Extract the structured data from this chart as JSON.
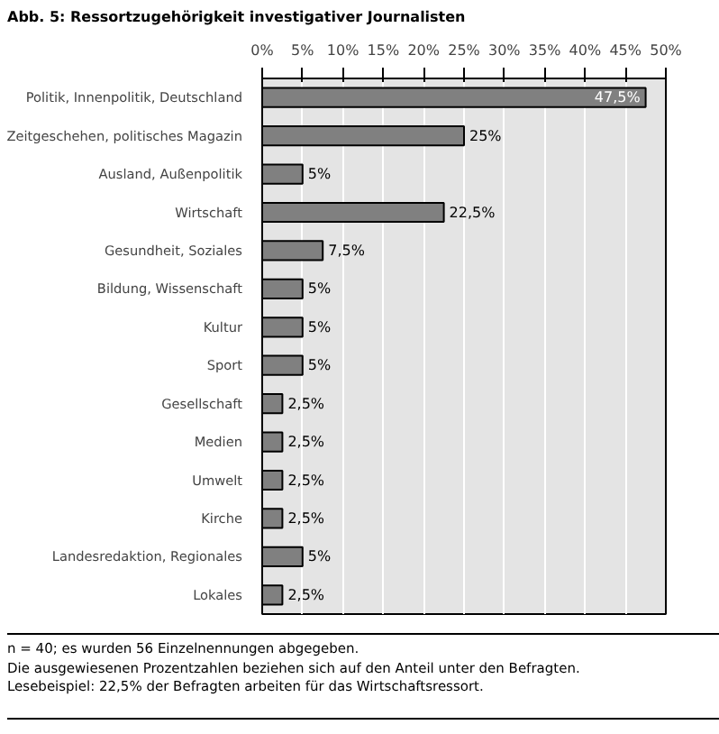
{
  "chart_data": {
    "type": "bar",
    "orientation": "horizontal",
    "title": "Abb. 5: Ressortzugehörigkeit investigativer Journalisten",
    "categories": [
      "Politik, Innenpolitik, Deutschland",
      "Zeitgeschehen, politisches Magazin",
      "Ausland, Außenpolitik",
      "Wirtschaft",
      "Gesundheit, Soziales",
      "Bildung, Wissenschaft",
      "Kultur",
      "Sport",
      "Gesellschaft",
      "Medien",
      "Umwelt",
      "Kirche",
      "Landesredaktion, Regionales",
      "Lokales"
    ],
    "values": [
      47.5,
      25,
      5,
      22.5,
      7.5,
      5,
      5,
      5,
      2.5,
      2.5,
      2.5,
      2.5,
      5,
      2.5
    ],
    "value_labels": [
      "47,5%",
      "25%",
      "5%",
      "22,5%",
      "7,5%",
      "5%",
      "5%",
      "5%",
      "2,5%",
      "2,5%",
      "2,5%",
      "2,5%",
      "5%",
      "2,5%"
    ],
    "color": "#808080",
    "xlim": [
      0,
      50
    ],
    "xticks": [
      {
        "value": 0,
        "label": "0%"
      },
      {
        "value": 5,
        "label": "5%"
      },
      {
        "value": 10,
        "label": "10%"
      },
      {
        "value": 15,
        "label": "15%"
      },
      {
        "value": 20,
        "label": "20%"
      },
      {
        "value": 25,
        "label": "25%"
      },
      {
        "value": 30,
        "label": "30%"
      },
      {
        "value": 35,
        "label": "35%"
      },
      {
        "value": 40,
        "label": "40%"
      },
      {
        "value": 45,
        "label": "45%"
      },
      {
        "value": 50,
        "label": "50%"
      }
    ],
    "grid": "x",
    "annotations": [
      "n = 40; es wurden 56 Einzelnennungen abgegeben.",
      "Die ausgewiesenen Prozentzahlen beziehen sich auf den Anteil unter den Befragten.",
      "Lesebeispiel: 22,5% der Befragten arbeiten für das Wirtschaftsressort."
    ]
  }
}
